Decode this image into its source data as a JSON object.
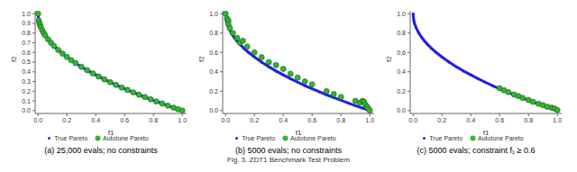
{
  "figure_caption": "Fig. 3. ZDT1 Benchmark Test Problem",
  "chart_data": [
    {
      "type": "scatter",
      "title": "(a) 25,000 evals; no constraints",
      "xlabel": "f1",
      "ylabel": "f2",
      "legend": "bottom",
      "xlim": [
        -0.02,
        1.03
      ],
      "ylim": [
        -0.03,
        1.03
      ],
      "xticks": [
        {
          "value": 0,
          "label": "0.0"
        },
        {
          "value": 0.2,
          "label": "0.2"
        },
        {
          "value": 0.4,
          "label": "0.4"
        },
        {
          "value": 0.6,
          "label": "0.6"
        },
        {
          "value": 0.8,
          "label": "0.8"
        },
        {
          "value": 1,
          "label": "1.0"
        }
      ],
      "yticks": [
        {
          "value": 0,
          "label": "0.0"
        },
        {
          "value": 0.1,
          "label": "0.1"
        },
        {
          "value": 0.2,
          "label": "0.2"
        },
        {
          "value": 0.3,
          "label": "0.3"
        },
        {
          "value": 0.4,
          "label": "0.4"
        },
        {
          "value": 0.5,
          "label": "0.5"
        },
        {
          "value": 0.6,
          "label": "0.6"
        },
        {
          "value": 0.7,
          "label": "0.7"
        },
        {
          "value": 0.8,
          "label": "0.8"
        },
        {
          "value": 0.9,
          "label": "0.9"
        },
        {
          "value": 1,
          "label": "1.0"
        }
      ],
      "series": [
        {
          "name": "True Pareto",
          "color": "#2020e0",
          "marker": "circle",
          "line_style": "solid",
          "x": [
            0,
            0.005,
            0.01,
            0.02,
            0.04,
            0.06,
            0.08,
            0.1,
            0.13,
            0.16,
            0.2,
            0.25,
            0.3,
            0.35,
            0.4,
            0.45,
            0.5,
            0.55,
            0.6,
            0.65,
            0.7,
            0.75,
            0.8,
            0.85,
            0.9,
            0.95,
            1.0
          ],
          "values": [
            1,
            0.929,
            0.9,
            0.859,
            0.8,
            0.755,
            0.717,
            0.684,
            0.639,
            0.6,
            0.553,
            0.5,
            0.452,
            0.408,
            0.368,
            0.329,
            0.293,
            0.258,
            0.225,
            0.194,
            0.163,
            0.134,
            0.106,
            0.078,
            0.051,
            0.025,
            0
          ]
        },
        {
          "name": "Autotune Pareto",
          "color": "#33b533",
          "marker": "circle",
          "x": [
            0,
            0.005,
            0.01,
            0.015,
            0.02,
            0.03,
            0.04,
            0.05,
            0.07,
            0.09,
            0.11,
            0.14,
            0.17,
            0.2,
            0.23,
            0.26,
            0.3,
            0.34,
            0.38,
            0.42,
            0.46,
            0.5,
            0.54,
            0.58,
            0.62,
            0.66,
            0.7,
            0.74,
            0.78,
            0.82,
            0.86,
            0.9,
            0.94,
            0.97,
            1.0
          ],
          "values": [
            1,
            0.929,
            0.9,
            0.878,
            0.859,
            0.827,
            0.8,
            0.776,
            0.735,
            0.7,
            0.668,
            0.626,
            0.588,
            0.553,
            0.52,
            0.49,
            0.452,
            0.417,
            0.384,
            0.352,
            0.322,
            0.293,
            0.265,
            0.238,
            0.213,
            0.188,
            0.163,
            0.14,
            0.117,
            0.094,
            0.073,
            0.051,
            0.03,
            0.015,
            0
          ]
        }
      ]
    },
    {
      "type": "scatter",
      "title": "(b) 5000 evals; no constraints",
      "xlabel": "f1",
      "ylabel": "f2",
      "legend": "bottom",
      "xlim": [
        -0.02,
        1.03
      ],
      "ylim": [
        -0.03,
        1.03
      ],
      "xticks": [
        {
          "value": 0,
          "label": "0.0"
        },
        {
          "value": 0.2,
          "label": "0.2"
        },
        {
          "value": 0.4,
          "label": "0.4"
        },
        {
          "value": 0.6,
          "label": "0.6"
        },
        {
          "value": 0.8,
          "label": "0.8"
        },
        {
          "value": 1,
          "label": "1.0"
        }
      ],
      "yticks": [
        {
          "value": 0,
          "label": "0.0"
        },
        {
          "value": 0.2,
          "label": "0.2"
        },
        {
          "value": 0.4,
          "label": "0.4"
        },
        {
          "value": 0.6,
          "label": "0.6"
        },
        {
          "value": 0.8,
          "label": "0.8"
        },
        {
          "value": 1,
          "label": "1.0"
        }
      ],
      "series": [
        {
          "name": "True Pareto",
          "color": "#2020e0",
          "marker": "circle",
          "line_style": "solid",
          "x": [
            0,
            0.005,
            0.01,
            0.02,
            0.04,
            0.06,
            0.08,
            0.1,
            0.13,
            0.16,
            0.2,
            0.25,
            0.3,
            0.35,
            0.4,
            0.45,
            0.5,
            0.55,
            0.6,
            0.65,
            0.7,
            0.75,
            0.8,
            0.85,
            0.9,
            0.95,
            1.0
          ],
          "values": [
            1,
            0.929,
            0.9,
            0.859,
            0.8,
            0.755,
            0.717,
            0.684,
            0.639,
            0.6,
            0.553,
            0.5,
            0.452,
            0.408,
            0.368,
            0.329,
            0.293,
            0.258,
            0.225,
            0.194,
            0.163,
            0.134,
            0.106,
            0.078,
            0.051,
            0.025,
            0
          ]
        },
        {
          "name": "Autotune Pareto",
          "color": "#33b533",
          "marker": "circle",
          "x": [
            0,
            0.01,
            0.02,
            0.02,
            0.03,
            0.05,
            0.08,
            0.1,
            0.12,
            0.15,
            0.2,
            0.25,
            0.3,
            0.35,
            0.4,
            0.45,
            0.5,
            0.55,
            0.6,
            0.7,
            0.75,
            0.8,
            0.9,
            0.93,
            0.95,
            0.96,
            0.97,
            0.98,
            0.99,
            1.0
          ],
          "values": [
            1,
            0.95,
            0.93,
            0.89,
            0.85,
            0.8,
            0.75,
            0.7,
            0.72,
            0.66,
            0.6,
            0.55,
            0.5,
            0.47,
            0.43,
            0.38,
            0.34,
            0.3,
            0.27,
            0.2,
            0.17,
            0.14,
            0.1,
            0.08,
            0.1,
            0.09,
            0.06,
            0.04,
            0.02,
            0
          ]
        }
      ]
    },
    {
      "type": "scatter",
      "title": "(c) 5000 evals; constraint f₁ ≥ 0.6",
      "xlabel": "f1",
      "ylabel": "f2",
      "legend": "bottom",
      "xlim": [
        -0.02,
        1.03
      ],
      "ylim": [
        -0.03,
        1.03
      ],
      "xticks": [
        {
          "value": 0,
          "label": "0.0"
        },
        {
          "value": 0.2,
          "label": "0.2"
        },
        {
          "value": 0.4,
          "label": "0.4"
        },
        {
          "value": 0.6,
          "label": "0.6"
        },
        {
          "value": 0.8,
          "label": "0.8"
        },
        {
          "value": 1,
          "label": "1.0"
        }
      ],
      "yticks": [
        {
          "value": 0,
          "label": "0.0"
        },
        {
          "value": 0.2,
          "label": "0.2"
        },
        {
          "value": 0.4,
          "label": "0.4"
        },
        {
          "value": 0.6,
          "label": "0.6"
        },
        {
          "value": 0.8,
          "label": "0.8"
        },
        {
          "value": 1,
          "label": "1.0"
        }
      ],
      "series": [
        {
          "name": "True Pareto",
          "color": "#2020e0",
          "marker": "circle",
          "line_style": "solid",
          "x": [
            0,
            0.005,
            0.01,
            0.02,
            0.04,
            0.06,
            0.08,
            0.1,
            0.13,
            0.16,
            0.2,
            0.25,
            0.3,
            0.35,
            0.4,
            0.45,
            0.5,
            0.55,
            0.6,
            0.65,
            0.7,
            0.75,
            0.8,
            0.85,
            0.9,
            0.95,
            1.0
          ],
          "values": [
            1,
            0.929,
            0.9,
            0.859,
            0.8,
            0.755,
            0.717,
            0.684,
            0.639,
            0.6,
            0.553,
            0.5,
            0.452,
            0.408,
            0.368,
            0.329,
            0.293,
            0.258,
            0.225,
            0.194,
            0.163,
            0.134,
            0.106,
            0.078,
            0.051,
            0.025,
            0
          ]
        },
        {
          "name": "Autotune Pareto",
          "color": "#33b533",
          "marker": "circle",
          "x": [
            0.6,
            0.63,
            0.66,
            0.7,
            0.73,
            0.76,
            0.8,
            0.83,
            0.87,
            0.9,
            0.93,
            0.96,
            0.98,
            1.0
          ],
          "values": [
            0.23,
            0.21,
            0.19,
            0.165,
            0.15,
            0.13,
            0.11,
            0.09,
            0.07,
            0.055,
            0.04,
            0.03,
            0.02,
            0.005
          ]
        }
      ]
    }
  ]
}
